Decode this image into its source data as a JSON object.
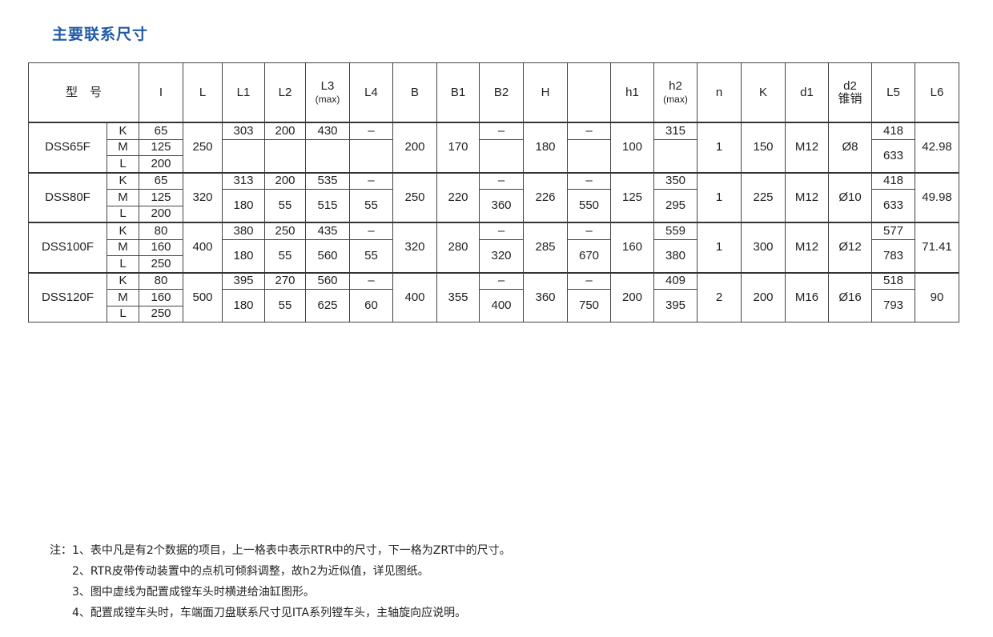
{
  "title": "主要联系尺寸",
  "header": {
    "model": "型　号",
    "cols": [
      "I",
      "L",
      "L1",
      "L2",
      "L3",
      "L4",
      "B",
      "B1",
      "B2",
      "H",
      "",
      "h1",
      "h2",
      "n",
      "K",
      "d1",
      "d2",
      "L5",
      "L6"
    ],
    "subs": {
      "L3": "(max)",
      "h2": "(max)",
      "d2": "锥销"
    }
  },
  "groups": [
    {
      "model": "DSS65F",
      "subs": [
        {
          "k": "K",
          "I": "65"
        },
        {
          "k": "M",
          "I": "125"
        },
        {
          "k": "L",
          "I": "200"
        }
      ],
      "L": "250",
      "B": "200",
      "B1": "170",
      "H": "180",
      "h1": "100",
      "n": "1",
      "K": "150",
      "d1": "M12",
      "d2": "Ø8",
      "L6": "42.98",
      "upper": {
        "L1": "303",
        "L2": "200",
        "L3": "430",
        "L4": "–",
        "B2": "–",
        "X": "–",
        "h2": "315",
        "L5": "418"
      },
      "lower": {
        "L1": "",
        "L2": "",
        "L3": "",
        "L4": "",
        "B2": "",
        "X": "",
        "h2": "",
        "L5": "633"
      }
    },
    {
      "model": "DSS80F",
      "subs": [
        {
          "k": "K",
          "I": "65"
        },
        {
          "k": "M",
          "I": "125"
        },
        {
          "k": "L",
          "I": "200"
        }
      ],
      "L": "320",
      "B": "250",
      "B1": "220",
      "H": "226",
      "h1": "125",
      "n": "1",
      "K": "225",
      "d1": "M12",
      "d2": "Ø10",
      "L6": "49.98",
      "upper": {
        "L1": "313",
        "L2": "200",
        "L3": "535",
        "L4": "–",
        "B2": "–",
        "X": "–",
        "h2": "350",
        "L5": "418"
      },
      "lower": {
        "L1": "180",
        "L2": "55",
        "L3": "515",
        "L4": "55",
        "B2": "360",
        "X": "550",
        "h2": "295",
        "L5": "633"
      }
    },
    {
      "model": "DSS100F",
      "subs": [
        {
          "k": "K",
          "I": "80"
        },
        {
          "k": "M",
          "I": "160"
        },
        {
          "k": "L",
          "I": "250"
        }
      ],
      "L": "400",
      "B": "320",
      "B1": "280",
      "H": "285",
      "h1": "160",
      "n": "1",
      "K": "300",
      "d1": "M12",
      "d2": "Ø12",
      "L6": "71.41",
      "upper": {
        "L1": "380",
        "L2": "250",
        "L3": "435",
        "L4": "–",
        "B2": "–",
        "X": "–",
        "h2": "559",
        "L5": "577"
      },
      "lower": {
        "L1": "180",
        "L2": "55",
        "L3": "560",
        "L4": "55",
        "B2": "320",
        "X": "670",
        "h2": "380",
        "L5": "783"
      }
    },
    {
      "model": "DSS120F",
      "subs": [
        {
          "k": "K",
          "I": "80"
        },
        {
          "k": "M",
          "I": "160"
        },
        {
          "k": "L",
          "I": "250"
        }
      ],
      "L": "500",
      "B": "400",
      "B1": "355",
      "H": "360",
      "h1": "200",
      "n": "2",
      "K": "200",
      "d1": "M16",
      "d2": "Ø16",
      "L6": "90",
      "upper": {
        "L1": "395",
        "L2": "270",
        "L3": "560",
        "L4": "–",
        "B2": "–",
        "X": "–",
        "h2": "409",
        "L5": "518"
      },
      "lower": {
        "L1": "180",
        "L2": "55",
        "L3": "625",
        "L4": "60",
        "B2": "400",
        "X": "750",
        "h2": "395",
        "L5": "793"
      }
    }
  ],
  "notes": [
    "注：1、表中凡是有2个数据的项目，上一格表中表示RTR中的尺寸，下一格为ZRT中的尺寸。",
    "2、RTR皮带传动装置中的点机可倾斜调整，故h2为近似值，详见图纸。",
    "3、图中虚线为配置成镗车头时横进给油缸图形。",
    "4、配置成镗车头时，车端面刀盘联系尺寸见ITA系列镗车头，主轴旋向应说明。"
  ]
}
